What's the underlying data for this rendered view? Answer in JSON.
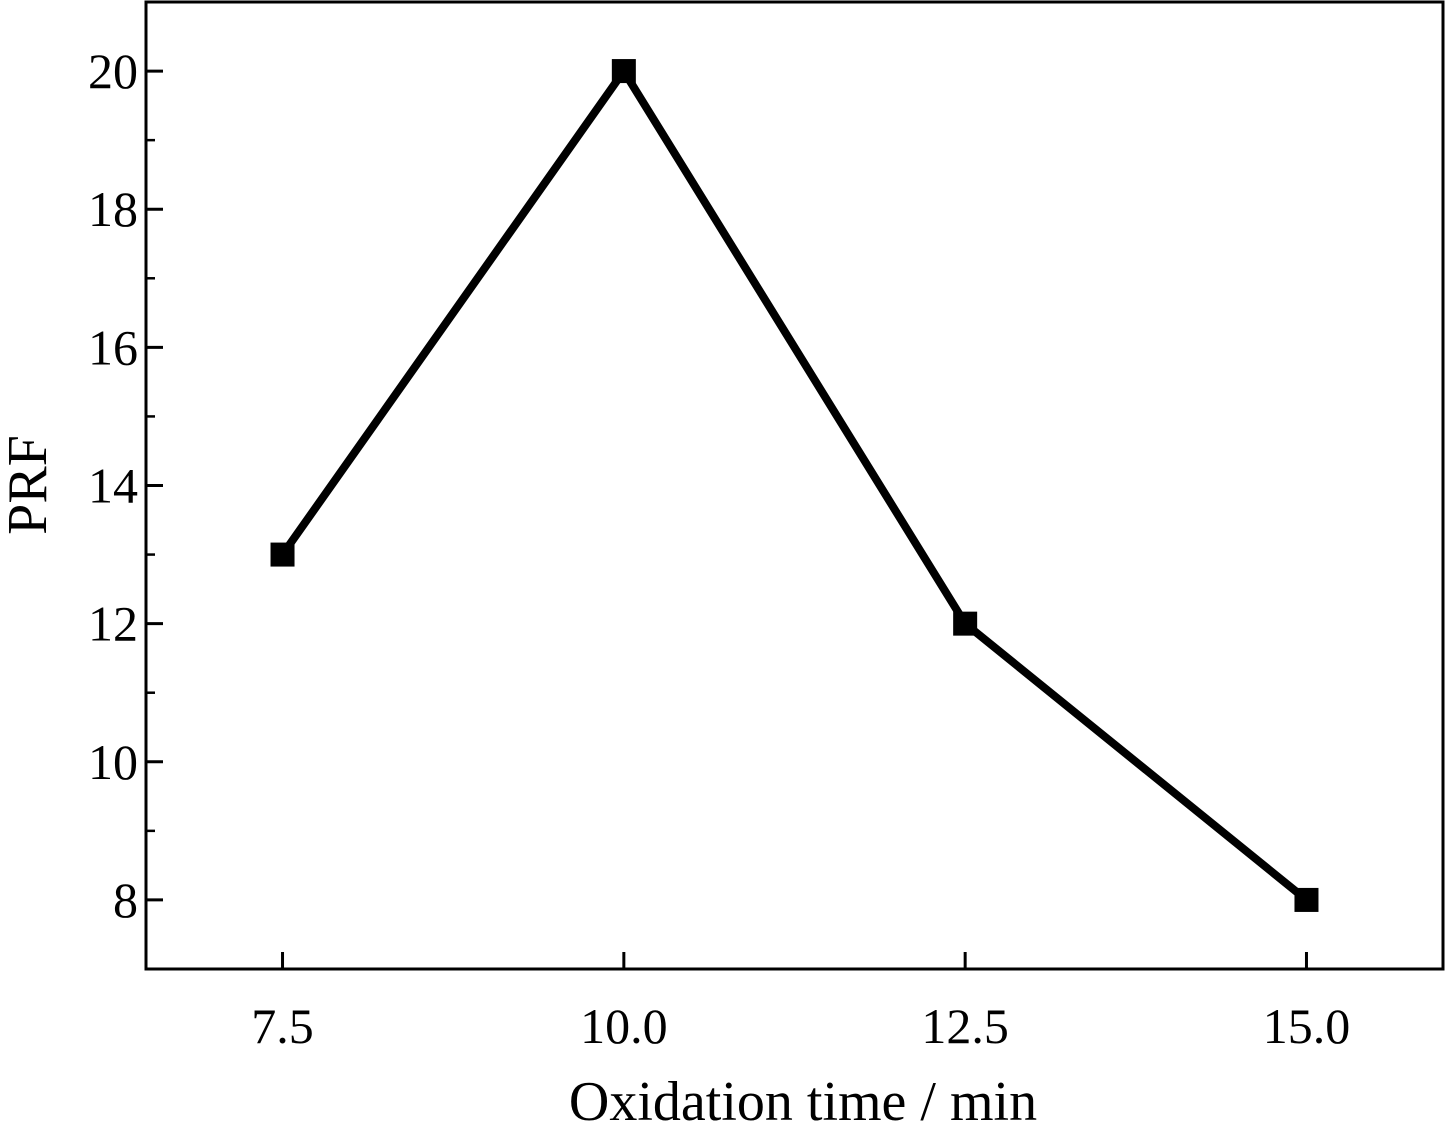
{
  "chart_data": {
    "type": "line",
    "title": "",
    "xlabel": "Oxidation time / min",
    "ylabel": "PRF",
    "xlim": [
      6.5,
      16.0
    ],
    "ylim": [
      7.0,
      21.0
    ],
    "x_ticks": [
      7.5,
      10.0,
      12.5,
      15.0
    ],
    "x_tick_labels": [
      "7.5",
      "10.0",
      "12.5",
      "15.0"
    ],
    "y_ticks": [
      8,
      10,
      12,
      14,
      16,
      18,
      20
    ],
    "y_tick_labels": [
      "8",
      "10",
      "12",
      "14",
      "16",
      "18",
      "20"
    ],
    "y_minor_step": 1,
    "grid": false,
    "legend": "none",
    "series": [
      {
        "x": [
          7.5,
          10.0,
          12.5,
          15.0
        ],
        "values": [
          13,
          20,
          12,
          8
        ],
        "color": "#000000",
        "marker": "square"
      }
    ]
  }
}
